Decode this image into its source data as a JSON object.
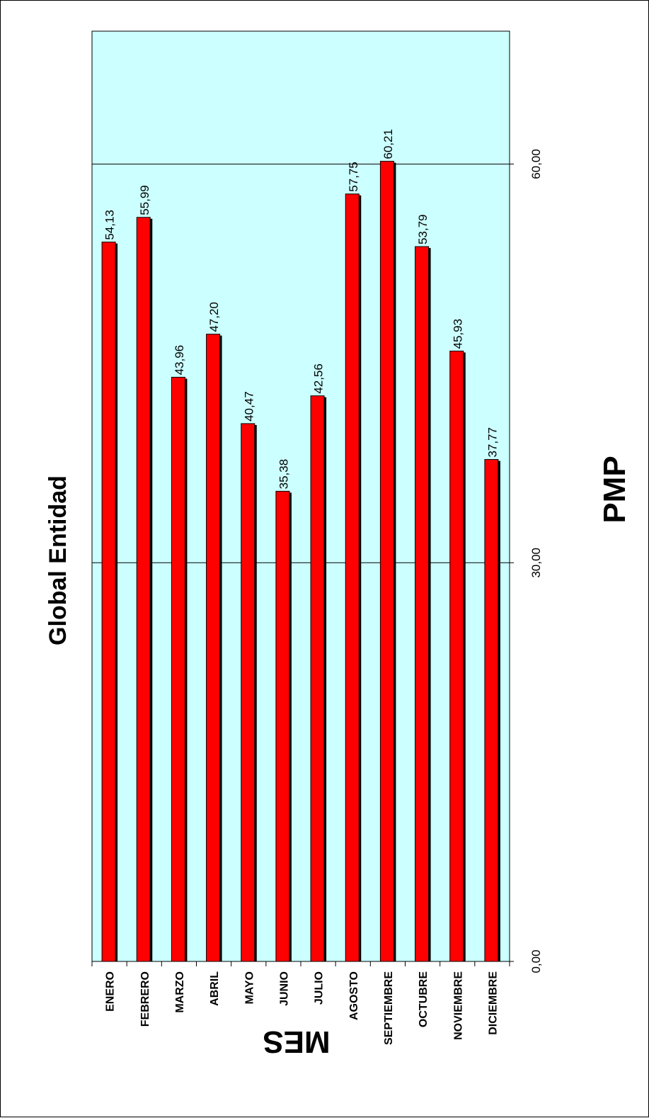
{
  "chart_data": {
    "type": "bar",
    "orientation": "rotated",
    "title": "Global Entidad",
    "xlabel": "MES",
    "ylabel": "PMP",
    "categories": [
      "ENERO",
      "FEBRERO",
      "MARZO",
      "ABRIL",
      "MAYO",
      "JUNIO",
      "JULIO",
      "AGOSTO",
      "SEPTIEMBRE",
      "OCTUBRE",
      "NOVIEMBRE",
      "DICIEMBRE"
    ],
    "values": [
      54.13,
      55.99,
      43.96,
      47.2,
      40.47,
      35.38,
      42.56,
      57.75,
      60.21,
      53.79,
      45.93,
      37.77
    ],
    "value_labels": [
      "54,13",
      "55,99",
      "43,96",
      "47,20",
      "40,47",
      "35,38",
      "42,56",
      "57,75",
      "60,21",
      "53,79",
      "45,93",
      "37,77"
    ],
    "yticks": [
      0,
      30,
      60
    ],
    "ytick_labels": [
      "0,00",
      "30,00",
      "60,00"
    ],
    "ylim": [
      0,
      70
    ],
    "grid": true,
    "legend": "none",
    "colors": {
      "bar": "#ff0000",
      "bar_shadow": "#000000",
      "plot_background": "#ccffff",
      "grid": "#000000"
    }
  }
}
